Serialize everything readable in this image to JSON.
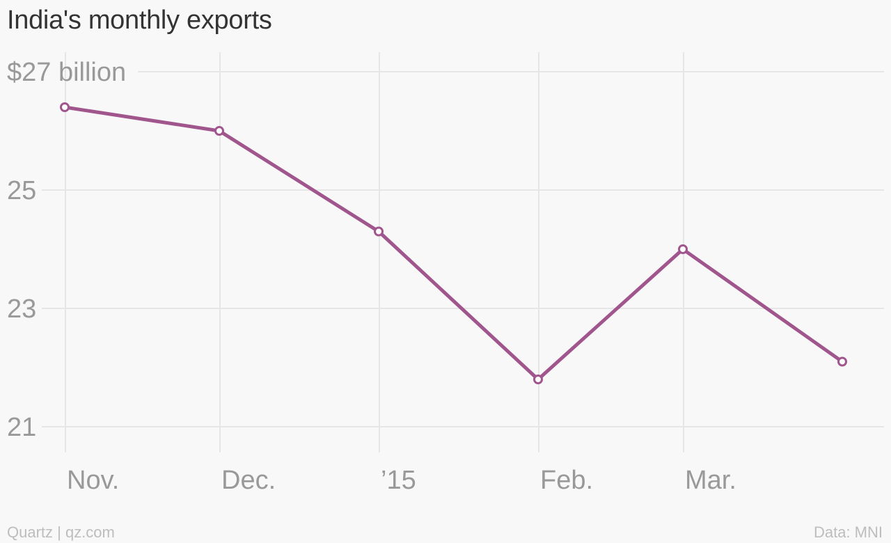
{
  "title": "India's monthly exports",
  "footer": {
    "credit": "Quartz | qz.com",
    "source": "Data: MNI"
  },
  "colors": {
    "line": "#a0558d",
    "grid": "#e6e6e6",
    "tick_text": "#999999",
    "background": "#f8f8f8"
  },
  "chart_data": {
    "type": "line",
    "title": "India's monthly exports",
    "xlabel": "",
    "ylabel": "",
    "ylim": [
      20.5,
      27.35
    ],
    "y_ticks": [
      27,
      25,
      23,
      21
    ],
    "y_tick_labels": [
      "$27 billion",
      "25",
      "23",
      "21"
    ],
    "x_tick_labels": [
      "Nov.",
      "Dec.",
      "’15",
      "Feb.",
      "Mar."
    ],
    "x": [
      "2014-10-01",
      "2014-11-01",
      "2014-12-01",
      "2015-01-01",
      "2015-02-01",
      "2015-03-01"
    ],
    "series": [
      {
        "values": [
          26.4,
          26.0,
          24.3,
          21.8,
          24.0,
          22.1
        ]
      }
    ],
    "grid": true,
    "markers": "hollow-circle"
  }
}
